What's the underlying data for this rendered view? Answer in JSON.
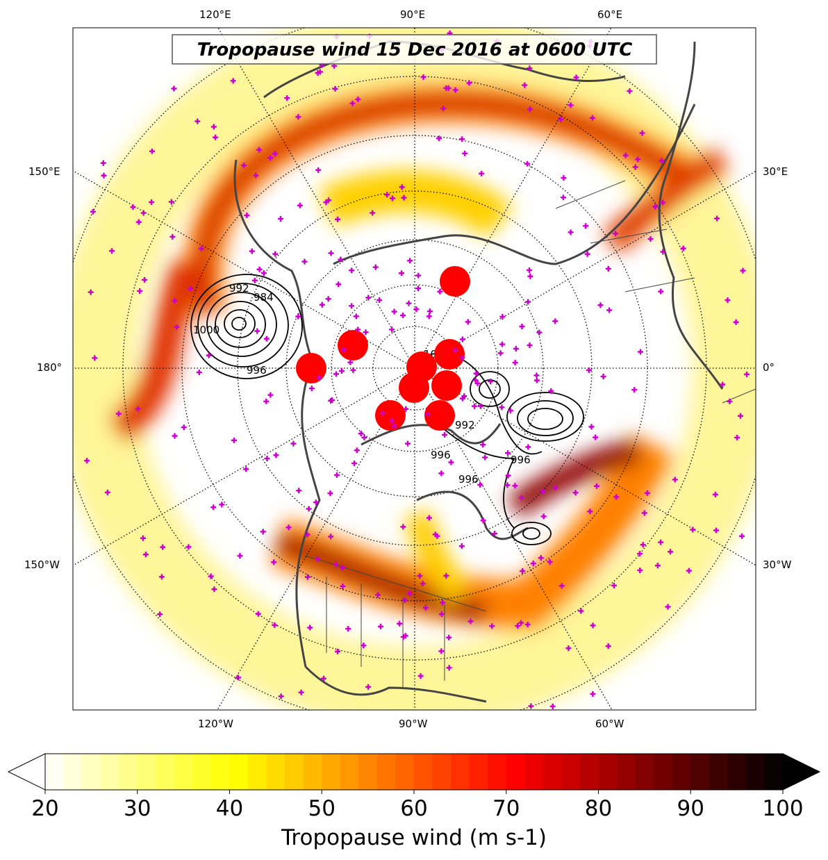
{
  "title": "Tropopause wind 15 Dec 2016 at 0600 UTC",
  "lon_labels_top": [
    "120°E",
    "90°E",
    "60°E"
  ],
  "lon_labels_bottom": [
    "120°W",
    "90°W",
    "60°W"
  ],
  "lon_labels_left": [
    "150°E",
    "180°",
    "150°W"
  ],
  "lon_labels_right": [
    "30°E",
    "0°",
    "30°W"
  ],
  "contour_labels": [
    "992",
    "984",
    "1000",
    "996",
    "1000",
    "992",
    "996",
    "996",
    "992",
    "996"
  ],
  "colorbar": {
    "label": "Tropopause wind (m s-1)",
    "min": 20,
    "max": 100,
    "step": 2,
    "ticks": [
      "20",
      "30",
      "40",
      "50",
      "60",
      "70",
      "80",
      "90",
      "100"
    ],
    "extend": "both"
  },
  "colors": {
    "marker": "#cc00cc",
    "coast": "#444444",
    "storm": "#ff0000"
  }
}
